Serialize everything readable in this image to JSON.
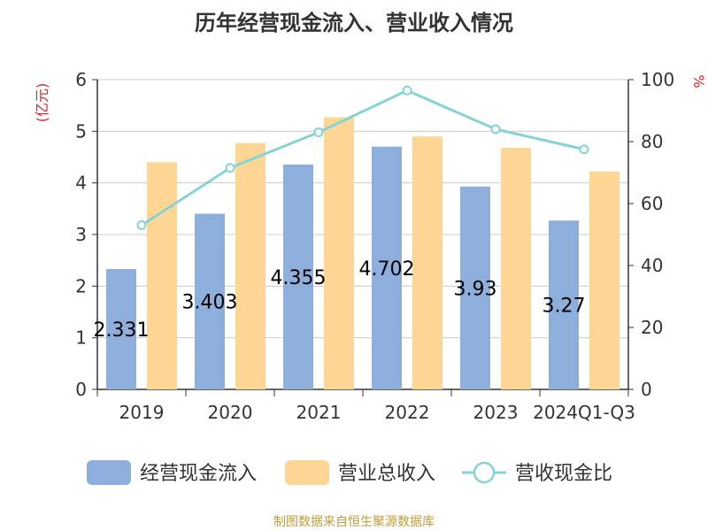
{
  "chart_data": {
    "type": "bar",
    "title": "历年经营现金流入、营业收入情况",
    "source": "制图数据来自恒生聚源数据库",
    "categories": [
      "2019",
      "2020",
      "2021",
      "2022",
      "2023",
      "2024Q1-Q3"
    ],
    "y_left": {
      "unit_label": "(亿元)",
      "lim": [
        0,
        6
      ],
      "ticks": [
        "0",
        "1",
        "2",
        "3",
        "4",
        "5",
        "6"
      ]
    },
    "y_right": {
      "unit_label": "%",
      "lim": [
        0,
        100
      ],
      "ticks": [
        "0",
        "20",
        "40",
        "60",
        "80",
        "100"
      ]
    },
    "grid": true,
    "legend_position": "bottom",
    "series": [
      {
        "name": "经营现金流入",
        "type": "bar",
        "axis": "left",
        "color": "#8eaedb",
        "values": [
          2.331,
          3.403,
          4.355,
          4.702,
          3.93,
          3.27
        ],
        "labels": [
          "2.331",
          "3.403",
          "4.355",
          "4.702",
          "3.93",
          "3.27"
        ]
      },
      {
        "name": "营业总收入",
        "type": "bar",
        "axis": "left",
        "color": "#fdd696",
        "values": [
          4.4,
          4.77,
          5.27,
          4.9,
          4.68,
          4.22
        ]
      },
      {
        "name": "营收现金比",
        "type": "line",
        "axis": "right",
        "color": "#86d3d6",
        "values": [
          53,
          71.5,
          83,
          96.5,
          84,
          77.5
        ]
      }
    ]
  }
}
